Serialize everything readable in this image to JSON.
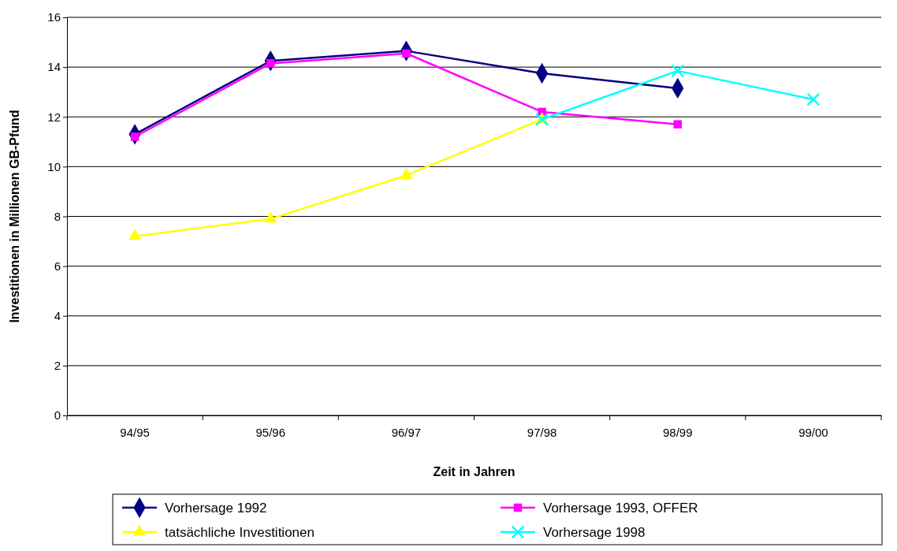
{
  "chart_data": {
    "type": "line",
    "xlabel": "Zeit in Jahren",
    "ylabel": "Investitionen in Millionen GB-Pfund",
    "categories": [
      "94/95",
      "95/96",
      "96/97",
      "97/98",
      "98/99",
      "99/00"
    ],
    "ylim": [
      0,
      16
    ],
    "yticks": [
      0,
      2,
      4,
      6,
      8,
      10,
      12,
      14,
      16
    ],
    "grid": "y",
    "legend": "bottom",
    "series": [
      {
        "name": "Vorhersage 1992",
        "color": "#000080",
        "marker": "diamond",
        "values": [
          11.3,
          14.25,
          14.65,
          13.75,
          13.15,
          null
        ]
      },
      {
        "name": "Vorhersage 1993, OFFER",
        "color": "#ff00ff",
        "marker": "square",
        "values": [
          11.2,
          14.15,
          14.55,
          12.2,
          11.7,
          null
        ]
      },
      {
        "name": "tatsächliche Investitionen",
        "color": "#ffff00",
        "marker": "triangle",
        "values": [
          7.2,
          7.9,
          9.65,
          11.9,
          null,
          null
        ]
      },
      {
        "name": "Vorhersage 1998",
        "color": "#00ffff",
        "marker": "cross",
        "values": [
          null,
          null,
          null,
          11.9,
          13.85,
          12.7
        ]
      }
    ]
  }
}
